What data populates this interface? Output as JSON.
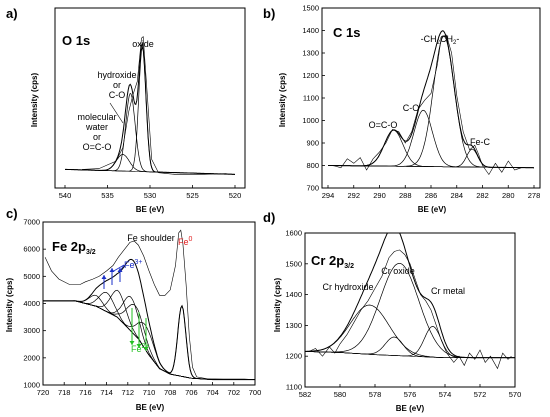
{
  "chart_data": [
    {
      "id": "a",
      "type": "line",
      "panel_label": "a)",
      "title": "O 1s",
      "xlabel": "BE (eV)",
      "ylabel": "Intensity (cps)",
      "xlim": [
        540,
        520
      ],
      "xaxis": "reversed",
      "ylim": [
        0,
        1
      ],
      "x_ticks": [
        540,
        535,
        530,
        525,
        520
      ],
      "y_tick_labels": "none",
      "annotations": [
        {
          "lines": [
            "oxide"
          ],
          "x": 530.9
        },
        {
          "lines": [
            "hydroxide",
            "or",
            "C-O"
          ],
          "x": 532.3
        },
        {
          "lines": [
            "molecular",
            "water",
            "or",
            "O=C-O"
          ],
          "x": 533.2
        }
      ],
      "components": [
        {
          "center": 530.9,
          "height": 0.75,
          "fwhm": 1.0
        },
        {
          "center": 532.3,
          "height": 0.47,
          "fwhm": 1.3
        },
        {
          "center": 533.2,
          "height": 0.1,
          "fwhm": 1.8
        }
      ],
      "background": {
        "low_be": 0.04,
        "high_be": 0.07
      },
      "raw_points": [
        [
          538,
          0.07
        ],
        [
          536,
          0.075
        ],
        [
          534,
          0.12
        ],
        [
          533.2,
          0.2
        ],
        [
          532.5,
          0.42
        ],
        [
          532,
          0.52
        ],
        [
          531.5,
          0.6
        ],
        [
          531,
          0.86
        ],
        [
          530.8,
          0.87
        ],
        [
          530.3,
          0.5
        ],
        [
          529.8,
          0.13
        ],
        [
          529,
          0.05
        ],
        [
          527,
          0.04
        ],
        [
          524,
          0.04
        ],
        [
          521,
          0.045
        ]
      ]
    },
    {
      "id": "b",
      "type": "line",
      "panel_label": "b)",
      "title": "C 1s",
      "xlabel": "BE (eV)",
      "ylabel": "Intensity (cps)",
      "xlim": [
        294,
        278
      ],
      "xaxis": "reversed",
      "ylim": [
        700,
        1500
      ],
      "x_ticks": [
        294,
        292,
        290,
        288,
        286,
        284,
        282,
        280,
        278
      ],
      "y_ticks": [
        700,
        800,
        900,
        1000,
        1100,
        1200,
        1300,
        1400,
        1500
      ],
      "annotations": [
        {
          "text": "-CH2CH2-",
          "x": 285.0
        },
        {
          "text": "C-O",
          "x": 286.6
        },
        {
          "text": "O=C-O",
          "x": 288.9
        },
        {
          "text": "Fe-C",
          "x": 282.8
        }
      ],
      "components": [
        {
          "center": 285.0,
          "height": 580,
          "fwhm": 1.9
        },
        {
          "center": 286.6,
          "height": 250,
          "fwhm": 1.7
        },
        {
          "center": 288.9,
          "height": 160,
          "fwhm": 1.7
        },
        {
          "center": 282.8,
          "height": 80,
          "fwhm": 1.0
        }
      ],
      "background": {
        "low_be": 790,
        "high_be": 800
      },
      "raw_points": [
        [
          293.6,
          800
        ],
        [
          293,
          790
        ],
        [
          292.5,
          830
        ],
        [
          292,
          810
        ],
        [
          291.5,
          835
        ],
        [
          291,
          780
        ],
        [
          290.5,
          830
        ],
        [
          290,
          860
        ],
        [
          289.5,
          900
        ],
        [
          289,
          960
        ],
        [
          288.5,
          950
        ],
        [
          288,
          900
        ],
        [
          287.5,
          950
        ],
        [
          287,
          1050
        ],
        [
          286.5,
          1090
        ],
        [
          286,
          1120
        ],
        [
          285.5,
          1250
        ],
        [
          285.2,
          1370
        ],
        [
          284.8,
          1380
        ],
        [
          284.4,
          1300
        ],
        [
          284,
          1110
        ],
        [
          283.5,
          950
        ],
        [
          283,
          870
        ],
        [
          282.6,
          890
        ],
        [
          282.3,
          850
        ],
        [
          282,
          800
        ],
        [
          281.5,
          760
        ],
        [
          281,
          810
        ],
        [
          280.5,
          770
        ],
        [
          280,
          820
        ],
        [
          279.5,
          780
        ],
        [
          279,
          790
        ]
      ]
    },
    {
      "id": "c",
      "type": "line",
      "panel_label": "c)",
      "title": "Fe 2p3/2",
      "title_main": "Fe 2p",
      "title_sub": "3/2",
      "xlabel": "BE (eV)",
      "ylabel": "Intensity (cps)",
      "xlim": [
        720,
        700
      ],
      "xaxis": "reversed",
      "ylim": [
        1000,
        7000
      ],
      "x_ticks": [
        720,
        718,
        716,
        714,
        712,
        710,
        708,
        706,
        704,
        702,
        700
      ],
      "y_ticks": [
        1000,
        2000,
        3000,
        4000,
        5000,
        6000,
        7000
      ],
      "annotations": [
        {
          "text": "Fe shoulder",
          "x": 712.3
        },
        {
          "text": "Fe",
          "superscript": "0",
          "x": 707.0,
          "color": "#e02020"
        },
        {
          "text": "Fe",
          "superscript": "3+",
          "x": 712.3,
          "color": "#1a2fc8"
        },
        {
          "text": "Fe",
          "superscript": "2+",
          "x": 710.3,
          "color": "#22c022"
        }
      ],
      "components": [
        {
          "center": 715.0,
          "height": 400,
          "fwhm": 1.5,
          "color": "#1a2fc8"
        },
        {
          "center": 714.0,
          "height": 700,
          "fwhm": 1.6,
          "color": "#1a2fc8"
        },
        {
          "center": 712.9,
          "height": 1000,
          "fwhm": 1.7,
          "color": "#1a2fc8"
        },
        {
          "center": 711.7,
          "height": 1250,
          "fwhm": 1.7,
          "color": "#1a2fc8"
        },
        {
          "center": 711.3,
          "height": 1100,
          "fwhm": 1.9,
          "color": "#22c022"
        },
        {
          "center": 710.3,
          "height": 900,
          "fwhm": 1.8,
          "color": "#22c022"
        },
        {
          "center": 706.9,
          "height": 2600,
          "fwhm": 0.9,
          "color": "#e02020"
        }
      ],
      "background_points": [
        [
          719.5,
          4100
        ],
        [
          717,
          4100
        ],
        [
          715,
          3900
        ],
        [
          713,
          3500
        ],
        [
          711,
          2700
        ],
        [
          710,
          2100
        ],
        [
          709,
          1600
        ],
        [
          708,
          1400
        ],
        [
          706,
          1250
        ],
        [
          704,
          1200
        ],
        [
          701,
          1200
        ]
      ],
      "raw_points": [
        [
          719.8,
          5700
        ],
        [
          719.2,
          5200
        ],
        [
          718.5,
          4900
        ],
        [
          717.5,
          4700
        ],
        [
          716.5,
          4700
        ],
        [
          716,
          4800
        ],
        [
          715.3,
          4900
        ],
        [
          714.7,
          5000
        ],
        [
          714,
          5200
        ],
        [
          713.4,
          5400
        ],
        [
          712.9,
          5700
        ],
        [
          712.3,
          6000
        ],
        [
          711.8,
          6250
        ],
        [
          711.4,
          6300
        ],
        [
          711,
          6150
        ],
        [
          710.5,
          5750
        ],
        [
          710,
          5200
        ],
        [
          709.5,
          4700
        ],
        [
          709,
          4300
        ],
        [
          708.5,
          4300
        ],
        [
          708,
          4500
        ],
        [
          707.5,
          5400
        ],
        [
          707.2,
          6600
        ],
        [
          707,
          6700
        ],
        [
          706.8,
          6200
        ],
        [
          706.5,
          4700
        ],
        [
          706.2,
          2800
        ],
        [
          705.9,
          1650
        ],
        [
          705.5,
          1300
        ],
        [
          704.5,
          1230
        ],
        [
          703,
          1220
        ],
        [
          701,
          1220
        ],
        [
          700.2,
          1200
        ]
      ]
    },
    {
      "id": "d",
      "type": "line",
      "panel_label": "d)",
      "title": "Cr 2p3/2",
      "title_main": "Cr 2p",
      "title_sub": "3/2",
      "xlabel": "BE (eV)",
      "ylabel": "Intensity (cps)",
      "xlim": [
        582,
        570
      ],
      "xaxis": "reversed",
      "ylim": [
        1100,
        1600
      ],
      "x_ticks": [
        582,
        580,
        578,
        576,
        574,
        572,
        570
      ],
      "y_ticks": [
        1100,
        1200,
        1300,
        1400,
        1500,
        1600
      ],
      "annotations": [
        {
          "text": "Cr oxide",
          "x": 576.6
        },
        {
          "text": "Cr hydroxide",
          "x": 578.3
        },
        {
          "text": "Cr metal",
          "x": 574.4
        }
      ],
      "components": [
        {
          "center": 576.6,
          "height": 300,
          "fwhm": 2.6
        },
        {
          "center": 578.3,
          "height": 160,
          "fwhm": 2.6
        },
        {
          "center": 574.7,
          "height": 100,
          "fwhm": 1.1
        },
        {
          "center": 576.9,
          "height": 60,
          "fwhm": 1.2
        }
      ],
      "background_points": [
        [
          581.8,
          1215
        ],
        [
          580,
          1212
        ],
        [
          578,
          1205
        ],
        [
          576,
          1200
        ],
        [
          574,
          1195
        ],
        [
          572,
          1195
        ],
        [
          570.2,
          1195
        ]
      ],
      "raw_points": [
        [
          581.8,
          1215
        ],
        [
          581.4,
          1225
        ],
        [
          581,
          1200
        ],
        [
          580.6,
          1230
        ],
        [
          580.3,
          1210
        ],
        [
          580,
          1240
        ],
        [
          579.6,
          1270
        ],
        [
          579.2,
          1310
        ],
        [
          578.8,
          1350
        ],
        [
          578.4,
          1380
        ],
        [
          578,
          1420
        ],
        [
          577.6,
          1460
        ],
        [
          577.2,
          1520
        ],
        [
          576.9,
          1540
        ],
        [
          576.6,
          1545
        ],
        [
          576.3,
          1530
        ],
        [
          576,
          1500
        ],
        [
          575.7,
          1450
        ],
        [
          575.4,
          1400
        ],
        [
          575.1,
          1380
        ],
        [
          574.8,
          1350
        ],
        [
          574.5,
          1300
        ],
        [
          574.2,
          1250
        ],
        [
          573.9,
          1210
        ],
        [
          573.5,
          1180
        ],
        [
          573.2,
          1200
        ],
        [
          572.9,
          1170
        ],
        [
          572.6,
          1210
        ],
        [
          572.3,
          1190
        ],
        [
          572,
          1220
        ],
        [
          571.7,
          1180
        ],
        [
          571.4,
          1200
        ],
        [
          571,
          1160
        ],
        [
          570.7,
          1210
        ],
        [
          570.4,
          1190
        ],
        [
          570.2,
          1200
        ]
      ]
    }
  ]
}
